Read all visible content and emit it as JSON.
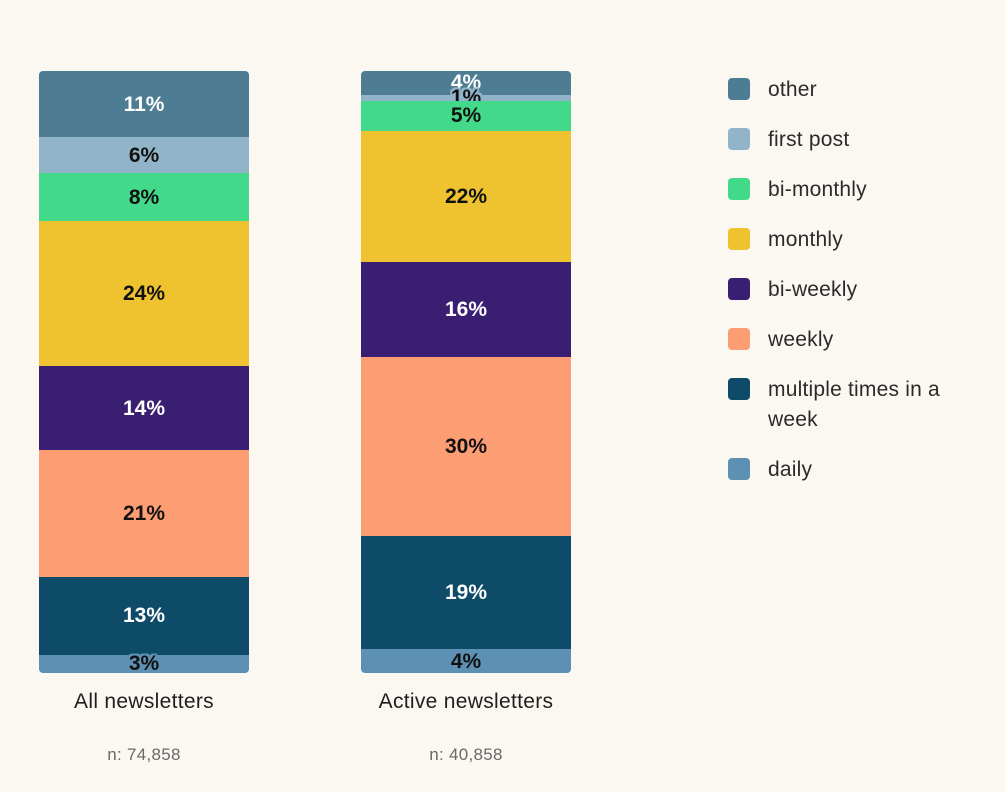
{
  "colors": {
    "background": "#faf8f1",
    "title_text": "#1f1f1f",
    "n_text": "#696969",
    "legend_text": "#2b2b2b"
  },
  "chart_data": {
    "type": "bar",
    "subtype": "stacked-percent",
    "orientation": "vertical",
    "unit": "%",
    "legend_position": "right",
    "grid": false,
    "categories": [
      {
        "label": "other",
        "color": "#4e7d93",
        "label_color": "#ffffff"
      },
      {
        "label": "first post",
        "color": "#92b4c8",
        "label_color": "#111111"
      },
      {
        "label": "bi-monthly",
        "color": "#43d98a",
        "label_color": "#111111"
      },
      {
        "label": "monthly",
        "color": "#efc32f",
        "label_color": "#111111"
      },
      {
        "label": "bi-weekly",
        "color": "#3a1e71",
        "label_color": "#ffffff"
      },
      {
        "label": "weekly",
        "color": "#fd9d73",
        "label_color": "#111111"
      },
      {
        "label": "multiple times in a week",
        "color": "#0d4b68",
        "label_color": "#ffffff"
      },
      {
        "label": "daily",
        "color": "#5d91b4",
        "label_color": "#111111"
      }
    ],
    "series": [
      {
        "name": "All newsletters",
        "n_label": "n: 74,858",
        "values": [
          11,
          6,
          8,
          24,
          14,
          21,
          13,
          3
        ]
      },
      {
        "name": "Active newsletters",
        "n_label": "n: 40,858",
        "values": [
          4,
          1,
          5,
          22,
          16,
          30,
          19,
          4
        ]
      }
    ]
  }
}
